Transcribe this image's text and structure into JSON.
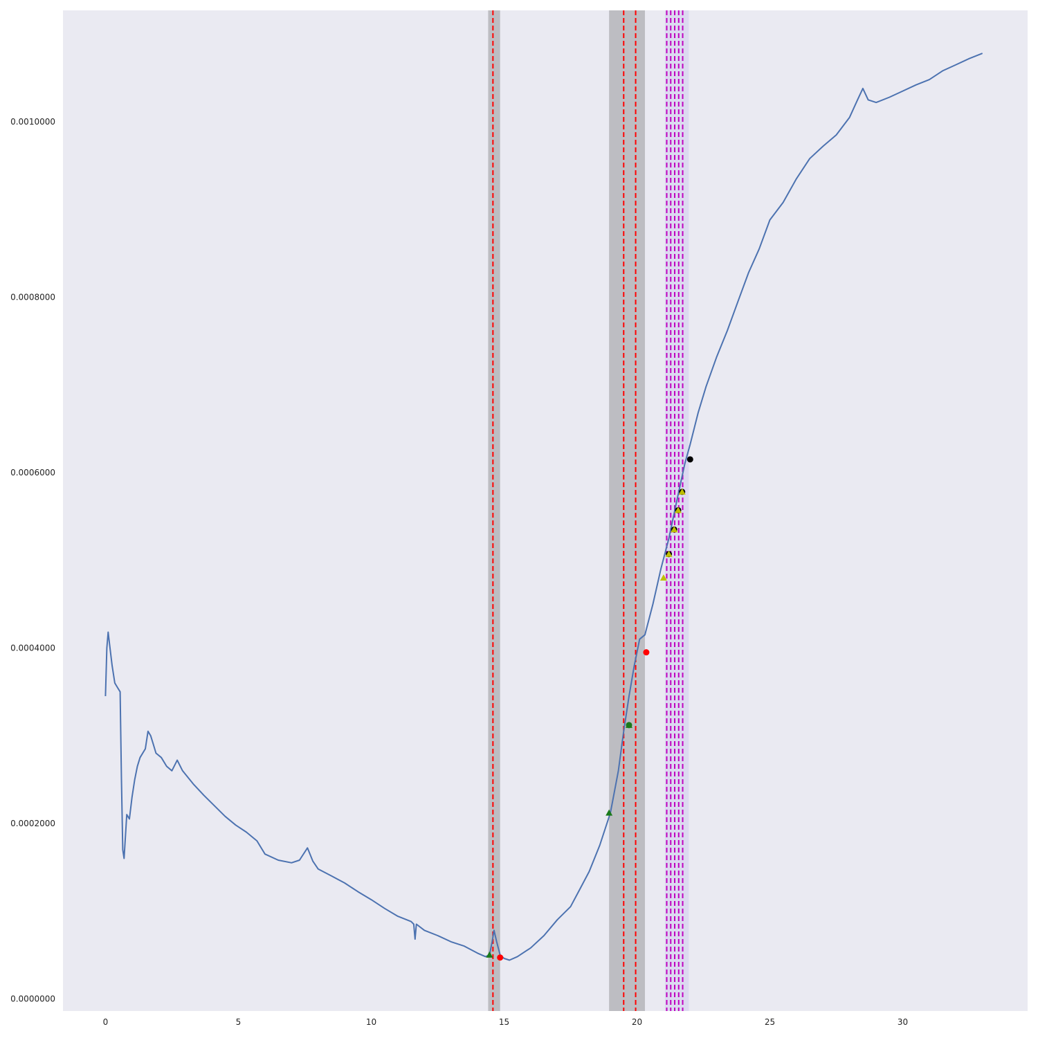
{
  "chart_data": {
    "type": "line",
    "title": "",
    "xlabel": "",
    "ylabel": "",
    "xlim": [
      -1.6,
      34.7
    ],
    "ylim": [
      -1.4e-05,
      0.001127
    ],
    "grid": false,
    "colors": {
      "background": "#eaeaf2",
      "line": "#4c72b0",
      "band_gray": "#bdbdc2",
      "band_lavender": "#dcd9f0",
      "vline_red": "#ff0000",
      "vline_magenta": "#bf00bf",
      "marker_red": "#ff0000",
      "marker_green": "#1a7a1a",
      "marker_yellow": "#bfbf00",
      "marker_black": "#000000"
    },
    "x_ticks": [
      0,
      5,
      10,
      15,
      20,
      25,
      30
    ],
    "x_tick_labels": [
      "0",
      "5",
      "10",
      "15",
      "20",
      "25",
      "30"
    ],
    "y_ticks": [
      0,
      0.0002,
      0.0004,
      0.0006,
      0.0008,
      0.001
    ],
    "y_tick_labels": [
      "0.0000000",
      "0.0002000",
      "0.0004000",
      "0.0006000",
      "0.0008000",
      "0.0010000"
    ],
    "series": [
      {
        "x": [
          0,
          0.05,
          0.1,
          0.15,
          0.25,
          0.35,
          0.45,
          0.55,
          0.6,
          0.65,
          0.7,
          0.8,
          0.9,
          1.0,
          1.1,
          1.2,
          1.3,
          1.5,
          1.6,
          1.7,
          1.8,
          1.9,
          2.1,
          2.3,
          2.5,
          2.7,
          2.9,
          3.3,
          3.7,
          4.1,
          4.5,
          4.9,
          5.3,
          5.7,
          6.0,
          6.5,
          7.0,
          7.3,
          7.6,
          7.8,
          8.0,
          8.5,
          9.0,
          9.5,
          10.0,
          10.5,
          11.0,
          11.5,
          11.6,
          11.65,
          11.7,
          12.0,
          12.5,
          13.0,
          13.5,
          14.0,
          14.3,
          14.45,
          14.55,
          14.62,
          14.72,
          14.85,
          15.0,
          15.2,
          15.5,
          16.0,
          16.5,
          17.0,
          17.5,
          17.8,
          18.2,
          18.6,
          19.0,
          19.3,
          19.5,
          19.7,
          19.9,
          20.1,
          20.3,
          20.6,
          20.9,
          21.2,
          21.5,
          21.8,
          22.0,
          22.3,
          22.6,
          23.0,
          23.4,
          23.8,
          24.2,
          24.6,
          25.0,
          25.5,
          26.0,
          26.5,
          27.0,
          27.5,
          28.0,
          28.3,
          28.5,
          28.7,
          29.0,
          29.5,
          30.0,
          30.5,
          31.0,
          31.5,
          32.0,
          32.5,
          33.0
        ],
        "values": [
          0.000345,
          0.0004,
          0.000418,
          0.000405,
          0.00038,
          0.00036,
          0.000355,
          0.00035,
          0.00025,
          0.00017,
          0.00016,
          0.00021,
          0.000205,
          0.00023,
          0.00025,
          0.000265,
          0.000275,
          0.000285,
          0.000305,
          0.0003,
          0.00029,
          0.00028,
          0.000275,
          0.000265,
          0.00026,
          0.000272,
          0.00026,
          0.000245,
          0.000232,
          0.00022,
          0.000208,
          0.000198,
          0.00019,
          0.00018,
          0.000165,
          0.000158,
          0.000155,
          0.000158,
          0.000172,
          0.000157,
          0.000148,
          0.00014,
          0.000132,
          0.000122,
          0.000113,
          0.000103,
          9.4e-05,
          8.8e-05,
          8.5e-05,
          6.8e-05,
          8.5e-05,
          7.8e-05,
          7.2e-05,
          6.5e-05,
          6e-05,
          5.2e-05,
          4.8e-05,
          5e-05,
          6.5e-05,
          7.8e-05,
          6.5e-05,
          5e-05,
          4.6e-05,
          4.4e-05,
          4.8e-05,
          5.8e-05,
          7.2e-05,
          9e-05,
          0.000105,
          0.000122,
          0.000145,
          0.000175,
          0.000212,
          0.00026,
          0.000305,
          0.000345,
          0.00038,
          0.00041,
          0.000415,
          0.00045,
          0.00049,
          0.000525,
          0.000568,
          0.00061,
          0.000632,
          0.000668,
          0.000698,
          0.000732,
          0.000762,
          0.000795,
          0.000828,
          0.000855,
          0.000888,
          0.000908,
          0.000935,
          0.000958,
          0.000972,
          0.000985,
          0.001005,
          0.001025,
          0.001038,
          0.001025,
          0.001022,
          0.001028,
          0.001035,
          0.001042,
          0.001048,
          0.001058,
          0.001065,
          0.001072,
          0.001078
        ]
      }
    ],
    "shaded_spans": [
      {
        "x0": 14.4,
        "x1": 14.85,
        "color": "band_gray"
      },
      {
        "x0": 18.95,
        "x1": 20.3,
        "color": "band_gray"
      },
      {
        "x0": 21.05,
        "x1": 21.95,
        "color": "band_lavender"
      }
    ],
    "vlines": [
      {
        "x": 14.58,
        "color": "vline_red"
      },
      {
        "x": 19.5,
        "color": "vline_red"
      },
      {
        "x": 19.95,
        "color": "vline_red"
      },
      {
        "x": 21.12,
        "color": "vline_magenta"
      },
      {
        "x": 21.27,
        "color": "vline_magenta"
      },
      {
        "x": 21.42,
        "color": "vline_magenta"
      },
      {
        "x": 21.57,
        "color": "vline_magenta"
      },
      {
        "x": 21.72,
        "color": "vline_magenta"
      }
    ],
    "markers": [
      {
        "x": 14.45,
        "y": 5e-05,
        "shape": "triangle",
        "color": "marker_green"
      },
      {
        "x": 14.85,
        "y": 4.7e-05,
        "shape": "circle",
        "color": "marker_red"
      },
      {
        "x": 18.95,
        "y": 0.000212,
        "shape": "triangle",
        "color": "marker_green"
      },
      {
        "x": 19.7,
        "y": 0.000312,
        "shape": "circle",
        "color": "marker_green"
      },
      {
        "x": 19.7,
        "y": 0.000312,
        "shape": "triangle",
        "color": "marker_green"
      },
      {
        "x": 20.35,
        "y": 0.000395,
        "shape": "circle",
        "color": "marker_red"
      },
      {
        "x": 21.0,
        "y": 0.00048,
        "shape": "triangle",
        "color": "marker_yellow"
      },
      {
        "x": 21.2,
        "y": 0.000507,
        "shape": "circle",
        "color": "marker_black"
      },
      {
        "x": 21.2,
        "y": 0.000507,
        "shape": "triangle",
        "color": "marker_yellow"
      },
      {
        "x": 21.4,
        "y": 0.000535,
        "shape": "circle",
        "color": "marker_black"
      },
      {
        "x": 21.4,
        "y": 0.000535,
        "shape": "triangle",
        "color": "marker_yellow"
      },
      {
        "x": 21.55,
        "y": 0.000557,
        "shape": "circle",
        "color": "marker_black"
      },
      {
        "x": 21.55,
        "y": 0.000557,
        "shape": "triangle",
        "color": "marker_yellow"
      },
      {
        "x": 21.7,
        "y": 0.000578,
        "shape": "circle",
        "color": "marker_black"
      },
      {
        "x": 21.7,
        "y": 0.000578,
        "shape": "triangle",
        "color": "marker_yellow"
      },
      {
        "x": 22.0,
        "y": 0.000615,
        "shape": "circle",
        "color": "marker_black"
      }
    ]
  }
}
